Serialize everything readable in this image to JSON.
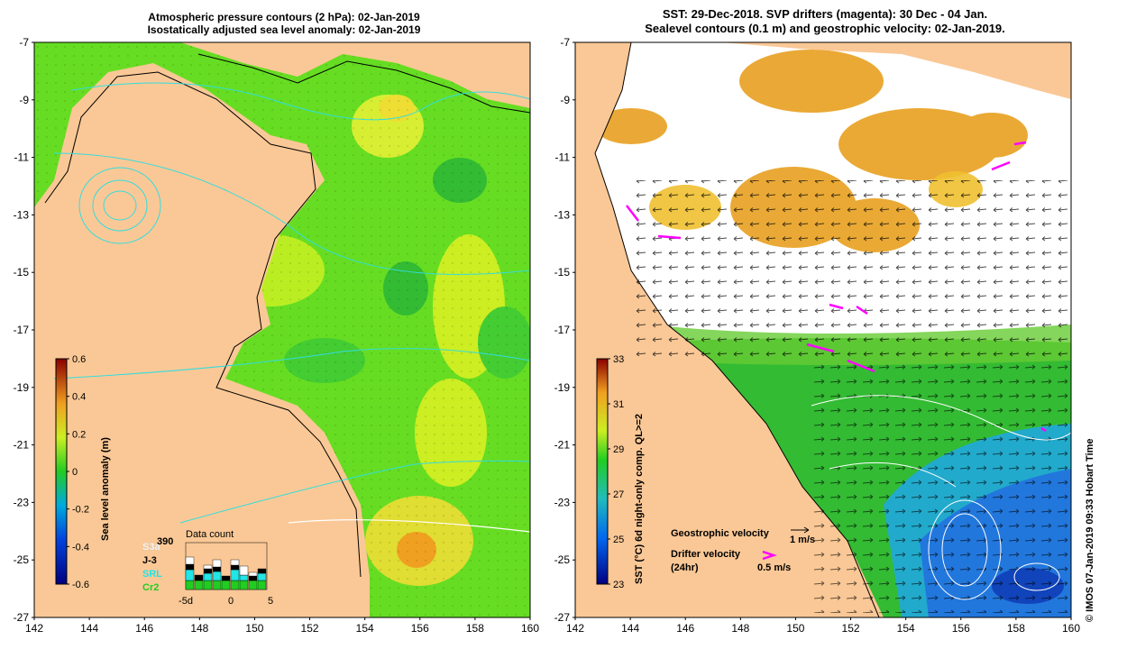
{
  "left_panel": {
    "title_line1": "Atmospheric pressure contours (2 hPa): 02-Jan-2019",
    "title_line2": "Isostatically adjusted sea level anomaly: 02-Jan-2019",
    "colorbar_label": "Sea level anomaly (m)",
    "colorbar_ticks": [
      "0.6",
      "0.4",
      "0.2",
      "0",
      "-0.2",
      "-0.4",
      "-0.6"
    ],
    "data_count_title": "Data count",
    "data_count_number": "390",
    "legend_items": [
      {
        "label": "S3a",
        "color": "#ffffff"
      },
      {
        "label": "J-3",
        "color": "#000000"
      },
      {
        "label": "SRL",
        "color": "#22e5e5"
      },
      {
        "label": "Cr2",
        "color": "#22cc22"
      }
    ],
    "count_axis": [
      "-5d",
      "0",
      "5"
    ]
  },
  "right_panel": {
    "title_line1": "SST: 29-Dec-2018. SVP drifters (magenta): 30 Dec - 04 Jan.",
    "title_line2": "Sealevel contours (0.1 m) and geostrophic velocity: 02-Jan-2019.",
    "colorbar_label": "SST (°C) 6d night-only comp. QL>=2",
    "colorbar_ticks": [
      "33",
      "31",
      "29",
      "27",
      "25",
      "23"
    ],
    "geo_velocity_label": "Geostrophic velocity",
    "geo_velocity_scale": "1 m/s",
    "drifter_label_line1": "Drifter velocity",
    "drifter_label_line2": "(24hr)",
    "drifter_scale": "0.5 m/s",
    "side_credit": "© IMOS 07-Jan-2019 09:33 Hobart Time"
  },
  "axes": {
    "y_ticks": [
      "-7",
      "-9",
      "-11",
      "-13",
      "-15",
      "-17",
      "-19",
      "-21",
      "-23",
      "-25",
      "-27"
    ],
    "x_ticks": [
      "142",
      "144",
      "146",
      "148",
      "150",
      "152",
      "154",
      "156",
      "158",
      "160"
    ]
  },
  "colors": {
    "land": "#fac896",
    "ssla_base": "#66dd22",
    "sst_warm": "#e8a020",
    "sst_mid": "#22bb44",
    "sst_cool": "#2288dd",
    "drifter": "#ff00ff"
  }
}
